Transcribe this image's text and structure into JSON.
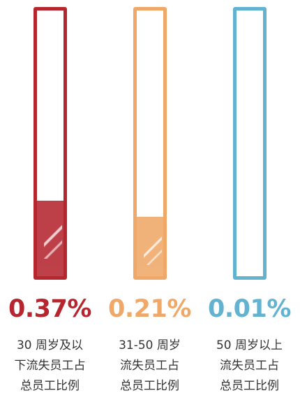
{
  "chart_data": {
    "type": "bar",
    "categories": [
      "30 周岁及以下流失员工占总员工比例",
      "31-50 周岁流失员工占总员工比例",
      "50 周岁以上流失员工占总员工比例"
    ],
    "values": [
      0.37,
      0.21,
      0.01
    ],
    "value_labels": [
      "0.37%",
      "0.21%",
      "0.01%"
    ],
    "category_lines": [
      [
        "30 周岁及以",
        "下流失员工占",
        "总员工比例"
      ],
      [
        "31-50 周岁",
        "流失员工占",
        "总员工比例"
      ],
      [
        "50 周岁以上",
        "流失员工占",
        "总员工比例"
      ]
    ],
    "colors": [
      "#b5262f",
      "#f0a868",
      "#62b3d0"
    ],
    "ylim": [
      0,
      1.4
    ],
    "fill_fraction": [
      0.285,
      0.225,
      0.0
    ]
  }
}
